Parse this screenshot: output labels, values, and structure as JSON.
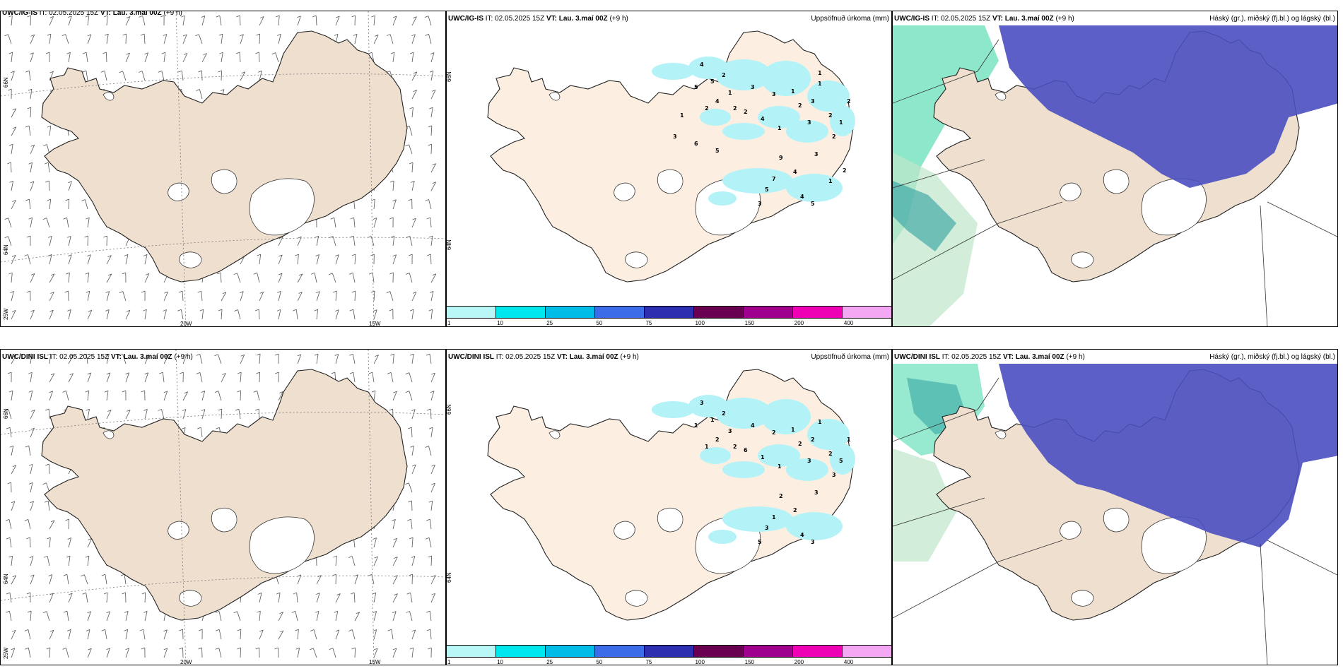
{
  "rows": [
    {
      "wind": {
        "model": "UWC/IG-IS",
        "it": "IT: 02.05.2025 15Z",
        "vt": "VT: Lau. 3.maí 00Z",
        "lead": "(+9 h)"
      },
      "precip": {
        "model": "UWC/IG-IS",
        "it": "IT: 02.05.2025 15Z",
        "vt": "VT: Lau. 3.maí 00Z",
        "lead": "(+9 h)",
        "right": "Uppsöfnuð úrkoma (mm)"
      },
      "cloud": {
        "model": "UWC/IG-IS",
        "it": "IT: 02.05.2025 15Z",
        "vt": "VT: Lau. 3.maí 00Z",
        "lead": "(+9 h)",
        "right": "Háský (gr.), miðský (fj.bl.) og lágský (bl.)"
      }
    },
    {
      "wind": {
        "model": "UWC/DINI ISL",
        "it": "IT: 02.05.2025 15Z",
        "vt": "VT: Lau. 3.maí 00Z",
        "lead": "(+9 h)"
      },
      "precip": {
        "model": "UWC/DINI ISL",
        "it": "IT: 02.05.2025 15Z",
        "vt": "VT: Lau. 3.maí 00Z",
        "lead": "(+9 h)",
        "right": "Uppsöfnuð úrkoma (mm)"
      },
      "cloud": {
        "model": "UWC/DINI ISL",
        "it": "IT: 02.05.2025 15Z",
        "vt": "VT: Lau. 3.maí 00Z",
        "lead": "(+9 h)",
        "right": "Háský (gr.), miðský (fj.bl.) og lágský (bl.)"
      }
    }
  ],
  "axes": {
    "lat_66": "66N",
    "lat_64": "64N",
    "lon_25": "25W",
    "lon_20": "20W",
    "lon_15": "15W"
  },
  "colorbar": {
    "colors": [
      "#b9f6f6",
      "#00e8ee",
      "#00bde8",
      "#3d6ce8",
      "#2d2fb0",
      "#6a0050",
      "#a0008e",
      "#ee00b4",
      "#f4a8f4"
    ],
    "labels": [
      "1",
      "10",
      "25",
      "50",
      "75",
      "100",
      "150",
      "200",
      "400"
    ]
  },
  "colors": {
    "land": "#eedfcf",
    "land_light": "#fcefe2",
    "rain": "#b3f3f7",
    "highcloud": "#4a4fc0",
    "midcloud": "#2ea0a0",
    "lowcloud": "#2fd4a0"
  },
  "precip_values_top": [
    "4",
    "5",
    "5",
    "2",
    "2",
    "4",
    "1",
    "2",
    "3",
    "2",
    "4",
    "3",
    "1",
    "1",
    "2",
    "3",
    "3",
    "1",
    "2",
    "2",
    "1",
    "2",
    "3",
    "4",
    "9",
    "7",
    "5",
    "3",
    "4",
    "5",
    "1",
    "2",
    "1",
    "1",
    "3",
    "6",
    "5"
  ],
  "precip_values_bottom": [
    "3",
    "1",
    "1",
    "2",
    "1",
    "2",
    "3",
    "2",
    "4",
    "6",
    "1",
    "2",
    "1",
    "1",
    "2",
    "3",
    "2",
    "1",
    "2",
    "3",
    "5",
    "1",
    "3",
    "2",
    "2",
    "1",
    "3",
    "5",
    "4",
    "3"
  ]
}
